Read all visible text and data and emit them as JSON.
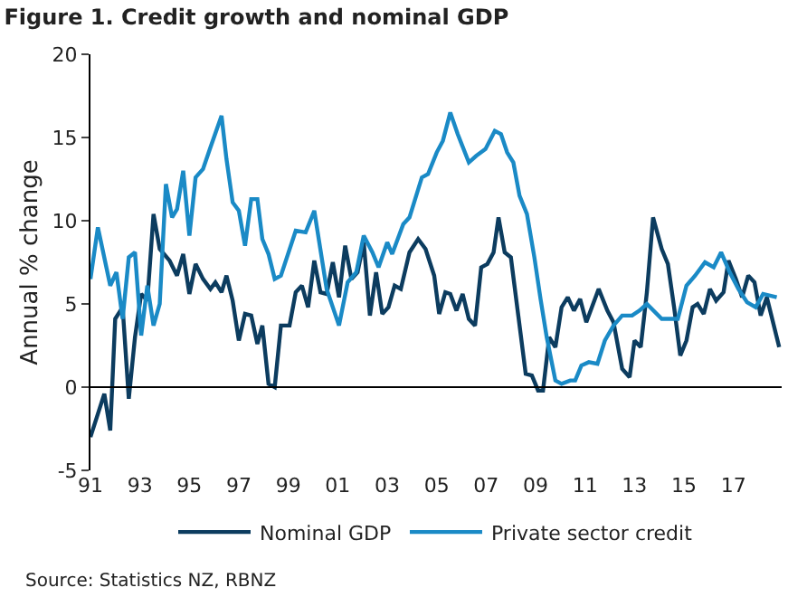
{
  "chart_data": {
    "type": "line",
    "title": "Figure 1. Credit growth and nominal GDP",
    "ylabel": "Annual % change",
    "xlim": [
      1991,
      2018.95
    ],
    "ylim": [
      -5,
      20
    ],
    "yticks": [
      -5,
      0,
      5,
      10,
      15,
      20
    ],
    "xticks": [
      {
        "value": 1991,
        "label": "91"
      },
      {
        "value": 1993,
        "label": "93"
      },
      {
        "value": 1995,
        "label": "95"
      },
      {
        "value": 1997,
        "label": "97"
      },
      {
        "value": 1999,
        "label": "99"
      },
      {
        "value": 2001,
        "label": "01"
      },
      {
        "value": 2003,
        "label": "03"
      },
      {
        "value": 2005,
        "label": "05"
      },
      {
        "value": 2007,
        "label": "07"
      },
      {
        "value": 2009,
        "label": "09"
      },
      {
        "value": 2011,
        "label": "11"
      },
      {
        "value": 2013,
        "label": "13"
      },
      {
        "value": 2015,
        "label": "15"
      },
      {
        "value": 2017,
        "label": "17"
      }
    ],
    "legend": "bottom",
    "ref_lines": [
      {
        "axis": "y",
        "value": 0,
        "color": "#000000"
      }
    ],
    "series": [
      {
        "name": "Nominal GDP",
        "color": "#0c3c5f",
        "x": [
          1991.0,
          1991.56,
          1991.8,
          1992.0,
          1992.3,
          1992.55,
          1992.8,
          1993.05,
          1993.3,
          1993.55,
          1993.8,
          1994.2,
          1994.5,
          1994.75,
          1995.0,
          1995.25,
          1995.55,
          1995.85,
          1996.05,
          1996.3,
          1996.5,
          1996.75,
          1997.0,
          1997.25,
          1997.5,
          1997.75,
          1997.95,
          1998.2,
          1998.45,
          1998.7,
          1999.05,
          1999.3,
          1999.55,
          1999.8,
          2000.05,
          2000.3,
          2000.55,
          2000.8,
          2001.05,
          2001.3,
          2001.55,
          2001.8,
          2002.05,
          2002.3,
          2002.55,
          2002.8,
          2003.05,
          2003.3,
          2003.55,
          2003.9,
          2004.25,
          2004.55,
          2004.9,
          2005.1,
          2005.35,
          2005.55,
          2005.8,
          2006.05,
          2006.3,
          2006.55,
          2006.8,
          2007.05,
          2007.3,
          2007.5,
          2007.75,
          2008.0,
          2008.3,
          2008.6,
          2008.85,
          2009.1,
          2009.3,
          2009.55,
          2009.8,
          2010.05,
          2010.3,
          2010.55,
          2010.8,
          2011.05,
          2011.55,
          2011.9,
          2012.15,
          2012.5,
          2012.8,
          2013.0,
          2013.25,
          2013.5,
          2013.75,
          2014.1,
          2014.35,
          2014.6,
          2014.85,
          2015.1,
          2015.35,
          2015.55,
          2015.8,
          2016.05,
          2016.3,
          2016.6,
          2016.8,
          2017.1,
          2017.35,
          2017.6,
          2017.85,
          2018.1,
          2018.35,
          2018.85
        ],
        "values": [
          -3.0,
          -0.4,
          -2.6,
          4.1,
          4.8,
          -0.7,
          3.0,
          5.6,
          5.2,
          10.4,
          8.3,
          7.6,
          6.7,
          8.0,
          5.6,
          7.4,
          6.5,
          5.9,
          6.3,
          5.7,
          6.7,
          5.2,
          2.8,
          4.4,
          4.3,
          2.6,
          3.7,
          0.2,
          0.0,
          3.7,
          3.7,
          5.7,
          6.1,
          4.8,
          7.6,
          5.7,
          5.6,
          7.5,
          5.4,
          8.5,
          6.5,
          6.9,
          8.7,
          4.3,
          6.9,
          4.4,
          4.8,
          6.1,
          5.9,
          8.1,
          8.9,
          8.3,
          6.7,
          4.4,
          5.7,
          5.6,
          4.6,
          5.6,
          4.1,
          3.7,
          7.2,
          7.4,
          8.1,
          10.2,
          8.1,
          7.8,
          4.3,
          0.8,
          0.7,
          -0.2,
          -0.2,
          3.0,
          2.4,
          4.8,
          5.4,
          4.6,
          5.3,
          3.9,
          5.9,
          4.6,
          3.9,
          1.1,
          0.6,
          2.8,
          2.4,
          5.7,
          10.2,
          8.3,
          7.4,
          4.8,
          1.9,
          2.8,
          4.8,
          5.0,
          4.4,
          5.9,
          5.2,
          5.7,
          7.6,
          6.5,
          5.4,
          6.7,
          6.3,
          4.3,
          5.4,
          2.4
        ]
      },
      {
        "name": "Private sector credit",
        "color": "#1a8ac6",
        "x": [
          1991.0,
          1991.3,
          1991.8,
          1992.05,
          1992.3,
          1992.55,
          1992.8,
          1993.05,
          1993.3,
          1993.55,
          1993.8,
          1994.05,
          1994.3,
          1994.5,
          1994.75,
          1995.0,
          1995.25,
          1995.55,
          1995.85,
          1996.3,
          1996.5,
          1996.75,
          1997.0,
          1997.25,
          1997.5,
          1997.75,
          1997.95,
          1998.2,
          1998.45,
          1998.7,
          1999.3,
          1999.7,
          2000.05,
          2000.55,
          2001.05,
          2001.4,
          2001.75,
          2002.05,
          2002.4,
          2002.65,
          2003.0,
          2003.2,
          2003.65,
          2003.9,
          2004.4,
          2004.65,
          2005.0,
          2005.25,
          2005.55,
          2005.85,
          2006.3,
          2006.6,
          2006.97,
          2007.35,
          2007.6,
          2007.85,
          2008.1,
          2008.35,
          2008.65,
          2008.95,
          2009.2,
          2009.45,
          2009.8,
          2010.05,
          2010.4,
          2010.6,
          2010.85,
          2011.15,
          2011.5,
          2011.8,
          2012.15,
          2012.5,
          2012.9,
          2013.2,
          2013.5,
          2014.1,
          2014.75,
          2015.1,
          2015.45,
          2015.85,
          2016.2,
          2016.5,
          2016.85,
          2017.2,
          2017.55,
          2017.9,
          2018.2,
          2018.75
        ],
        "values": [
          6.5,
          9.6,
          6.1,
          6.9,
          4.1,
          7.8,
          8.1,
          3.1,
          6.1,
          3.7,
          5.0,
          12.2,
          10.2,
          10.7,
          13.0,
          9.1,
          12.6,
          13.1,
          14.4,
          16.3,
          13.7,
          11.1,
          10.6,
          8.5,
          11.3,
          11.3,
          8.9,
          8.0,
          6.5,
          6.7,
          9.4,
          9.3,
          10.6,
          5.9,
          3.7,
          6.3,
          6.9,
          9.1,
          8.1,
          7.2,
          8.7,
          8.0,
          9.8,
          10.2,
          12.6,
          12.8,
          14.1,
          14.8,
          16.5,
          15.2,
          13.5,
          13.9,
          14.3,
          15.4,
          15.2,
          14.1,
          13.5,
          11.5,
          10.4,
          7.8,
          5.3,
          3.0,
          0.4,
          0.2,
          0.4,
          0.4,
          1.3,
          1.5,
          1.4,
          2.8,
          3.7,
          4.3,
          4.3,
          4.6,
          5.0,
          4.1,
          4.1,
          6.1,
          6.7,
          7.5,
          7.2,
          8.1,
          6.9,
          5.9,
          5.1,
          4.8,
          5.6,
          5.4
        ]
      }
    ],
    "annotations": [
      "Source: Statistics NZ, RBNZ"
    ]
  }
}
